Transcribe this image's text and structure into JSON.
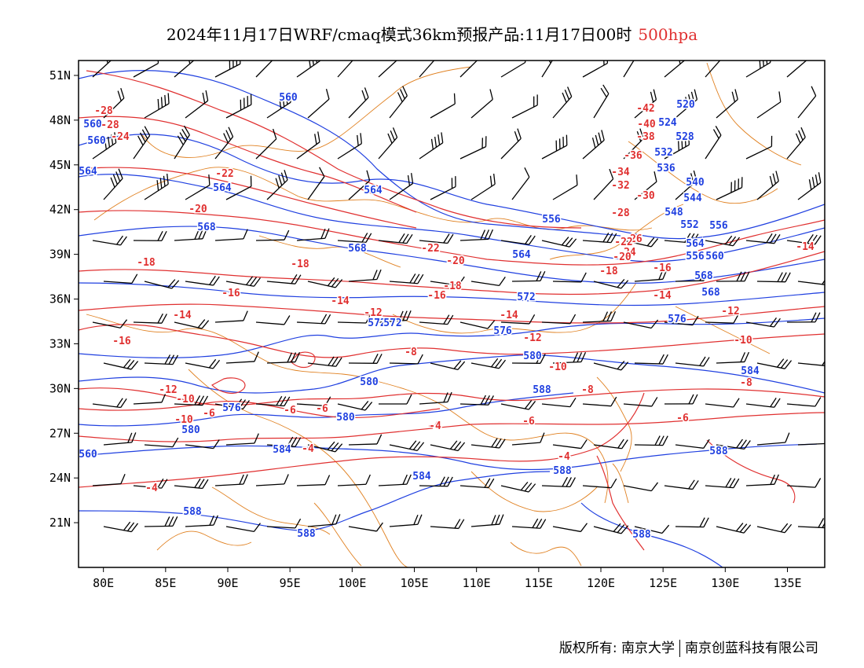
{
  "header": {
    "title": "2024年11月17日WRF/cmaq模式36km预报产品:11月17日00时",
    "level": "500hpa"
  },
  "map": {
    "lon_ticks": [
      "80E",
      "85E",
      "90E",
      "95E",
      "100E",
      "105E",
      "110E",
      "115E",
      "120E",
      "125E",
      "130E",
      "135E"
    ],
    "lat_ticks": [
      "51N",
      "48N",
      "45N",
      "42N",
      "39N",
      "36N",
      "33N",
      "30N",
      "27N",
      "24N",
      "21N"
    ],
    "lon_range": [
      78,
      138
    ],
    "lat_range": [
      18,
      52
    ],
    "colors": {
      "height_contour": "#2040e0",
      "temperature_contour": "#e03030",
      "boundary": "#e08020",
      "wind_barb": "#000000"
    },
    "height_labels": [
      "560",
      "560",
      "564",
      "564",
      "564",
      "568",
      "568",
      "520",
      "524",
      "528",
      "532",
      "536",
      "540",
      "544",
      "548",
      "552",
      "556",
      "556",
      "560",
      "564",
      "568",
      "572",
      "572",
      "576",
      "576",
      "580",
      "580",
      "580",
      "584",
      "584",
      "588",
      "588",
      "588",
      "588",
      "588",
      "560",
      "564",
      "568",
      "572",
      "576",
      "580",
      "584",
      "588",
      "556",
      "560"
    ],
    "temp_labels": [
      "-28",
      "-28",
      "-24",
      "-22",
      "-20",
      "-18",
      "-18",
      "-16",
      "-16",
      "-14",
      "-14",
      "-12",
      "-10",
      "-8",
      "-6",
      "-6",
      "-4",
      "-4",
      "-4",
      "-6",
      "-8",
      "-10",
      "-12",
      "-14",
      "-16",
      "-18",
      "-20",
      "-22",
      "-42",
      "-40",
      "-38",
      "-36",
      "-34",
      "-32",
      "-30",
      "-28",
      "-26",
      "-24",
      "-22",
      "-20",
      "-18",
      "-16",
      "-14",
      "-12",
      "-10",
      "-8",
      "-6",
      "-4",
      "-14",
      "-12",
      "-10",
      "-6",
      "-4"
    ]
  },
  "footer": {
    "copyright": "版权所有: 南京大学",
    "company": "南京创蓝科技有限公司"
  }
}
